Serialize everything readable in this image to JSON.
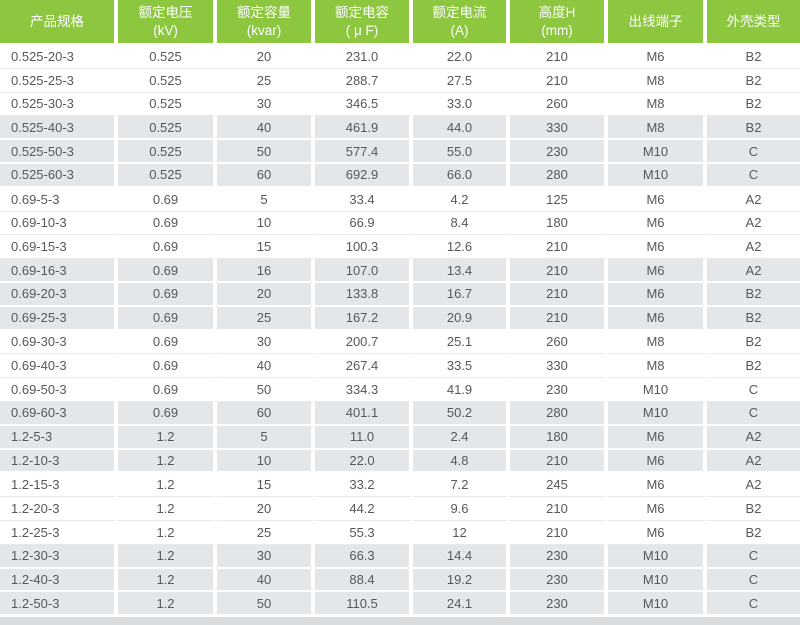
{
  "chart_data": {
    "type": "table",
    "columns": [
      {
        "label": "产品规格",
        "unit": ""
      },
      {
        "label": "额定电压",
        "unit": "(kV)"
      },
      {
        "label": "额定容量",
        "unit": "(kvar)"
      },
      {
        "label": "额定电容",
        "unit": "( μ F)"
      },
      {
        "label": "额定电流",
        "unit": "(A)"
      },
      {
        "label": "高度H",
        "unit": "(mm)"
      },
      {
        "label": "出线端子",
        "unit": ""
      },
      {
        "label": "外壳类型",
        "unit": ""
      }
    ],
    "rows": [
      [
        "0.525-20-3",
        "0.525",
        "20",
        "231.0",
        "22.0",
        "210",
        "M6",
        "B2"
      ],
      [
        "0.525-25-3",
        "0.525",
        "25",
        "288.7",
        "27.5",
        "210",
        "M8",
        "B2"
      ],
      [
        "0.525-30-3",
        "0.525",
        "30",
        "346.5",
        "33.0",
        "260",
        "M8",
        "B2"
      ],
      [
        "0.525-40-3",
        "0.525",
        "40",
        "461.9",
        "44.0",
        "330",
        "M8",
        "B2"
      ],
      [
        "0.525-50-3",
        "0.525",
        "50",
        "577.4",
        "55.0",
        "230",
        "M10",
        "C"
      ],
      [
        "0.525-60-3",
        "0.525",
        "60",
        "692.9",
        "66.0",
        "280",
        "M10",
        "C"
      ],
      [
        "0.69-5-3",
        "0.69",
        "5",
        "33.4",
        "4.2",
        "125",
        "M6",
        "A2"
      ],
      [
        "0.69-10-3",
        "0.69",
        "10",
        "66.9",
        "8.4",
        "180",
        "M6",
        "A2"
      ],
      [
        "0.69-15-3",
        "0.69",
        "15",
        "100.3",
        "12.6",
        "210",
        "M6",
        "A2"
      ],
      [
        "0.69-16-3",
        "0.69",
        "16",
        "107.0",
        "13.4",
        "210",
        "M6",
        "A2"
      ],
      [
        "0.69-20-3",
        "0.69",
        "20",
        "133.8",
        "16.7",
        "210",
        "M6",
        "B2"
      ],
      [
        "0.69-25-3",
        "0.69",
        "25",
        "167.2",
        "20.9",
        "210",
        "M6",
        "B2"
      ],
      [
        "0.69-30-3",
        "0.69",
        "30",
        "200.7",
        "25.1",
        "260",
        "M8",
        "B2"
      ],
      [
        "0.69-40-3",
        "0.69",
        "40",
        "267.4",
        "33.5",
        "330",
        "M8",
        "B2"
      ],
      [
        "0.69-50-3",
        "0.69",
        "50",
        "334.3",
        "41.9",
        "230",
        "M10",
        "C"
      ],
      [
        "0.69-60-3",
        "0.69",
        "60",
        "401.1",
        "50.2",
        "280",
        "M10",
        "C"
      ],
      [
        "1.2-5-3",
        "1.2",
        "5",
        "11.0",
        "2.4",
        "180",
        "M6",
        "A2"
      ],
      [
        "1.2-10-3",
        "1.2",
        "10",
        "22.0",
        "4.8",
        "210",
        "M6",
        "A2"
      ],
      [
        "1.2-15-3",
        "1.2",
        "15",
        "33.2",
        "7.2",
        "245",
        "M6",
        "A2"
      ],
      [
        "1.2-20-3",
        "1.2",
        "20",
        "44.2",
        "9.6",
        "210",
        "M6",
        "B2"
      ],
      [
        "1.2-25-3",
        "1.2",
        "25",
        "55.3",
        "12",
        "210",
        "M6",
        "B2"
      ],
      [
        "1.2-30-3",
        "1.2",
        "30",
        "66.3",
        "14.4",
        "230",
        "M10",
        "C"
      ],
      [
        "1.2-40-3",
        "1.2",
        "40",
        "88.4",
        "19.2",
        "230",
        "M10",
        "C"
      ],
      [
        "1.2-50-3",
        "1.2",
        "50",
        "110.5",
        "24.1",
        "230",
        "M10",
        "C"
      ]
    ]
  },
  "colors": {
    "header_bg": "#8dc63f",
    "header_text": "#ffffff",
    "shaded_row_bg": "#e4e7ea",
    "cell_text": "#55585c",
    "row_divider": "#e9e9e9",
    "bottom_strip": "#d9dcdf"
  }
}
